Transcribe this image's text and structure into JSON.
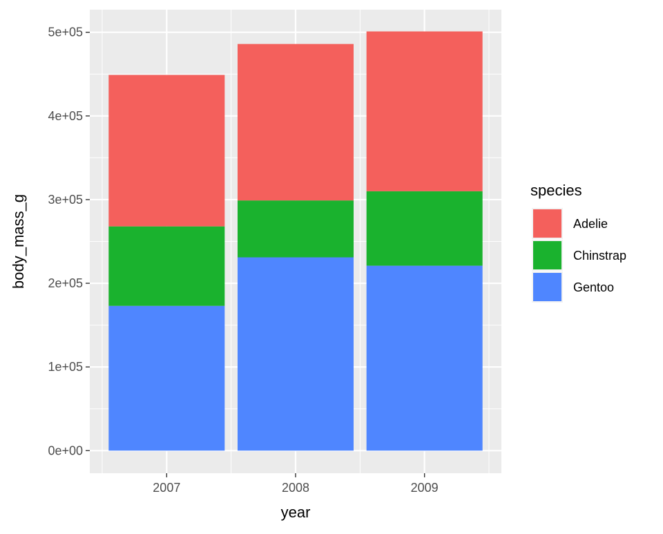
{
  "chart_data": {
    "type": "bar",
    "stacked": true,
    "categories": [
      "2007",
      "2008",
      "2009"
    ],
    "series": [
      {
        "name": "Gentoo",
        "color": "#4F86FF",
        "values": [
          173000,
          231000,
          221000
        ]
      },
      {
        "name": "Chinstrap",
        "color": "#1AB22E",
        "values": [
          95000,
          68000,
          89000
        ]
      },
      {
        "name": "Adelie",
        "color": "#F4605C",
        "values": [
          181000,
          187000,
          191000
        ]
      }
    ],
    "xlabel": "year",
    "ylabel": "body_mass_g",
    "ylim": [
      -27000,
      527000
    ],
    "yticks": [
      0,
      100000,
      200000,
      300000,
      400000,
      500000
    ],
    "ytick_labels": [
      "0e+00",
      "1e+05",
      "2e+05",
      "3e+05",
      "4e+05",
      "5e+05"
    ],
    "legend": {
      "title": "species",
      "position": "right",
      "entries": [
        {
          "label": "Adelie",
          "color": "#F4605C"
        },
        {
          "label": "Chinstrap",
          "color": "#1AB22E"
        },
        {
          "label": "Gentoo",
          "color": "#4F86FF"
        }
      ]
    },
    "grid": true,
    "panel_background": "#EBEBEB"
  }
}
